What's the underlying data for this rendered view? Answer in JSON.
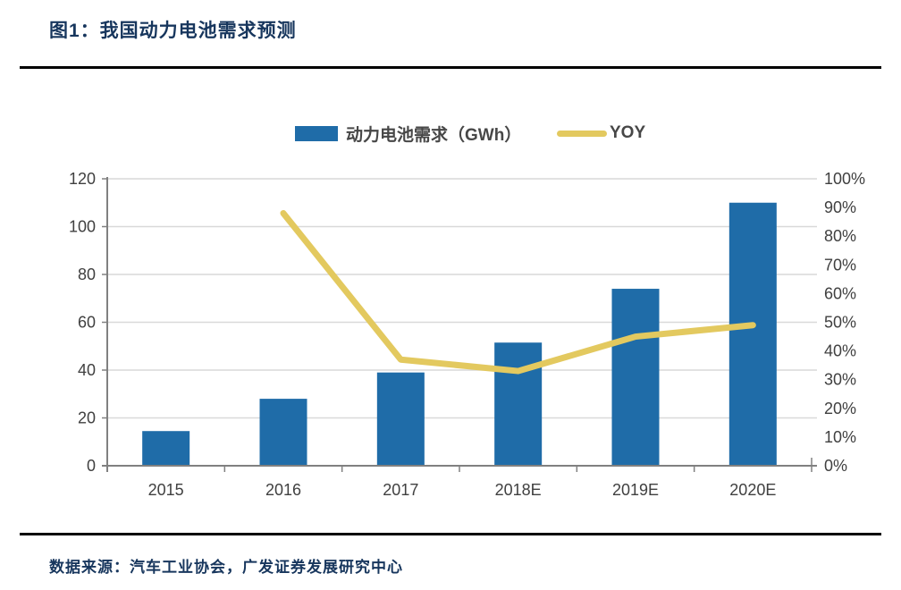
{
  "page": {
    "title": "图1：我国动力电池需求预测",
    "source": "数据来源：汽车工业协会，广发证券发展研究中心"
  },
  "legend": {
    "bar_label": "动力电池需求（GWh）",
    "line_label": "YOY",
    "position": "top-center"
  },
  "colors": {
    "bar": "#1F6CA8",
    "line": "#E3C95F",
    "title_text": "#17365D",
    "source_text": "#17365D",
    "legend_text": "#474747",
    "axis_text": "#404040",
    "gridline": "#D9D9D9",
    "axis_line": "#808080",
    "divider": "#000000",
    "background": "#FFFFFF"
  },
  "chart_data": {
    "type": "combo: bar (left axis) + line (right axis)",
    "title": "我国动力电池需求预测",
    "categories": [
      "2015",
      "2016",
      "2017",
      "2018E",
      "2019E",
      "2020E"
    ],
    "series": [
      {
        "name": "动力电池需求（GWh）",
        "type": "bar",
        "axis": "left",
        "values": [
          14.5,
          28,
          39,
          51.5,
          74,
          110
        ]
      },
      {
        "name": "YOY",
        "type": "line",
        "axis": "right",
        "values": [
          null,
          88,
          37,
          33,
          45,
          49
        ]
      }
    ],
    "left_axis": {
      "min": 0,
      "max": 120,
      "step": 20,
      "tick_labels": [
        "0",
        "20",
        "40",
        "60",
        "80",
        "100",
        "120"
      ]
    },
    "right_axis": {
      "min": 0,
      "max": 100,
      "step": 10,
      "unit": "%",
      "tick_labels": [
        "0%",
        "10%",
        "20%",
        "30%",
        "40%",
        "50%",
        "60%",
        "70%",
        "80%",
        "90%",
        "100%"
      ]
    },
    "grid": true,
    "legend_position": "top-center"
  }
}
